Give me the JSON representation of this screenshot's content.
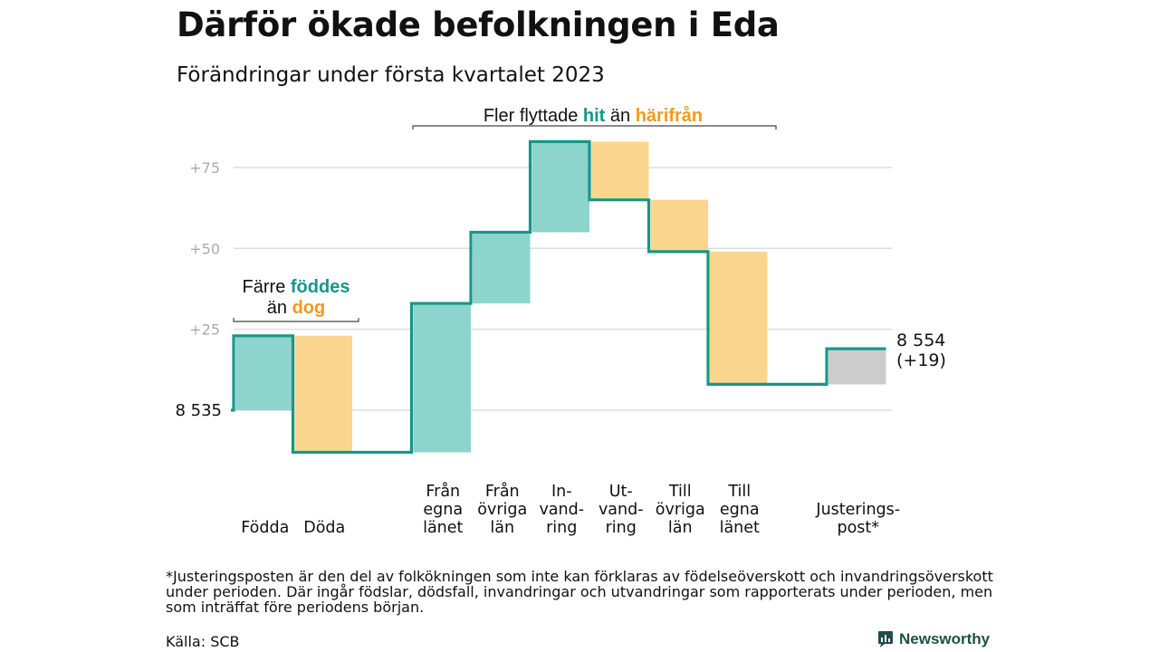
{
  "title": "Därför ökade befolkningen i Eda",
  "subtitle": "Förändringar under första kvartalet 2023",
  "colors": {
    "increase": "#8dd4cc",
    "decrease": "#fad58e",
    "adjustment": "#cccccc",
    "line": "#17968a",
    "teal_text": "#17968a",
    "orange_text": "#f29a1d"
  },
  "chart_data": {
    "type": "waterfall",
    "baseline": 8535,
    "start_label": "8 535",
    "end_label": "8 554",
    "end_change": "(+19)",
    "y_ticks": [
      {
        "value": 25,
        "label": "+25"
      },
      {
        "value": 50,
        "label": "+50"
      },
      {
        "value": 75,
        "label": "+75"
      }
    ],
    "ylim": [
      -13,
      84
    ],
    "steps": [
      {
        "label": [
          "Födda"
        ],
        "change": 23,
        "kind": "increase"
      },
      {
        "label": [
          "Döda"
        ],
        "change": -36,
        "kind": "decrease"
      },
      {
        "label": [
          ""
        ],
        "change": 0,
        "kind": "gap"
      },
      {
        "label": [
          "Från",
          "egna",
          "länet"
        ],
        "change": 46,
        "kind": "increase"
      },
      {
        "label": [
          "Från",
          "övriga",
          "län"
        ],
        "change": 22,
        "kind": "increase"
      },
      {
        "label": [
          "In-",
          "vand-",
          "ring"
        ],
        "change": 28,
        "kind": "increase"
      },
      {
        "label": [
          "Ut-",
          "vand-",
          "ring"
        ],
        "change": -18,
        "kind": "decrease"
      },
      {
        "label": [
          "Till",
          "övriga",
          "län"
        ],
        "change": -16,
        "kind": "decrease"
      },
      {
        "label": [
          "Till",
          "egna",
          "länet"
        ],
        "change": -41,
        "kind": "decrease"
      },
      {
        "label": [
          ""
        ],
        "change": 0,
        "kind": "gap"
      },
      {
        "label": [
          "Justerings-",
          "post*"
        ],
        "change": 11,
        "kind": "adjustment"
      }
    ],
    "annotations": [
      {
        "parts": [
          {
            "text": "Färre ",
            "color": "dark"
          },
          {
            "text": "föddes",
            "color": "teal"
          }
        ],
        "parts2": [
          {
            "text": "än ",
            "color": "dark"
          },
          {
            "text": "dog",
            "color": "orange"
          }
        ]
      },
      {
        "parts": [
          {
            "text": "Fler flyttade ",
            "color": "dark"
          },
          {
            "text": "hit",
            "color": "teal"
          },
          {
            "text": " än ",
            "color": "dark"
          },
          {
            "text": "härifrån",
            "color": "orange"
          }
        ]
      }
    ]
  },
  "footnote": "*Justeringsposten är den del av folkökningen som inte kan förklaras av födelseöverskott och invandringsöverskott under perioden. Där ingår födslar, dödsfall, invandringar och utvandringar som rapporterats under perioden, men som inträffat före periodens början.",
  "source": "Källa: SCB",
  "brand": {
    "name": "Newsworthy",
    "icon": "newsworthy-logo-icon"
  }
}
